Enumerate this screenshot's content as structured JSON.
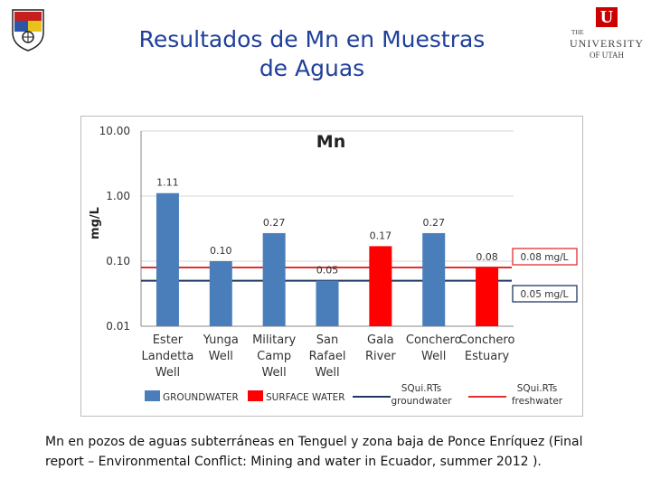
{
  "slide": {
    "title_line1": "Resultados de Mn en Muestras",
    "title_line2": "de Aguas",
    "caption_line1": "Mn en pozos de aguas subterráneas en Tenguel y zona baja de Ponce Enríquez (Final",
    "caption_line2": "report – Environmental Conflict: Mining and water in Ecuador, summer 2012 )."
  },
  "logos": {
    "right": {
      "the": "THE",
      "university": "UNIVERSITY",
      "of_utah": "OF UTAH",
      "letter": "U"
    }
  },
  "chart_data": {
    "type": "bar",
    "title": "Mn",
    "ylabel": "mg/L",
    "yscale": "log",
    "ylim": [
      0.01,
      10
    ],
    "yticks": [
      "0.01",
      "0.10",
      "1.00",
      "10.00"
    ],
    "categories": [
      [
        "Ester",
        "Landetta",
        "Well"
      ],
      [
        "Yunga",
        "Well"
      ],
      [
        "Military",
        "Camp",
        "Well"
      ],
      [
        "San",
        "Rafael",
        "Well"
      ],
      [
        "Gala",
        "River"
      ],
      [
        "Conchero",
        "Well"
      ],
      [
        "Conchero",
        "Estuary"
      ]
    ],
    "values": [
      1.11,
      0.1,
      0.27,
      0.05,
      0.17,
      0.27,
      0.08
    ],
    "value_labels": [
      "1.11",
      "0.10",
      "0.27",
      "0.05",
      "0.17",
      "0.27",
      "0.08"
    ],
    "bar_types": [
      "groundwater",
      "groundwater",
      "groundwater",
      "groundwater",
      "surface",
      "groundwater",
      "surface"
    ],
    "colors": {
      "groundwater": "#4a7ebb",
      "surface": "#ff0000",
      "groundwater_line": "#1f3864",
      "freshwater_line": "#e03030"
    },
    "reference_lines": [
      {
        "value": 0.08,
        "label": "0.08 mg/L",
        "type": "freshwater"
      },
      {
        "value": 0.05,
        "label": "0.05 mg/L",
        "type": "groundwater"
      }
    ],
    "legend": [
      {
        "label": "GROUNDWATER",
        "kind": "bar",
        "type": "groundwater"
      },
      {
        "label": "SURFACE WATER",
        "kind": "bar",
        "type": "surface"
      },
      {
        "label": [
          "SQui.RTs",
          "groundwater"
        ],
        "kind": "line",
        "type": "groundwater_line"
      },
      {
        "label": [
          "SQui.RTs",
          "freshwater"
        ],
        "kind": "line",
        "type": "freshwater_line"
      }
    ],
    "grid": true,
    "legend_position": "bottom"
  }
}
